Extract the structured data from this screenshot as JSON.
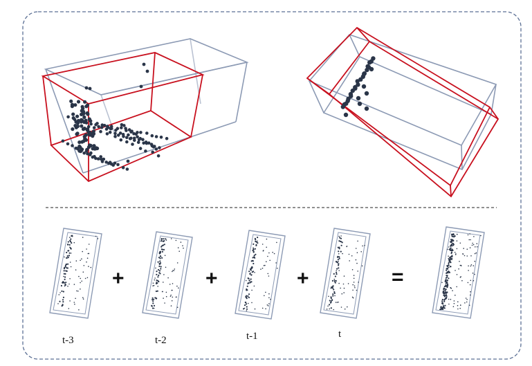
{
  "colors": {
    "predicted_box": "#c8101e",
    "reference_box": "#8c9ab4",
    "points": "#2a3548",
    "border": "#5b6f94",
    "divider": "#222222"
  },
  "top_panel": {
    "left_view": {
      "description_icon": "3d-box-pair-side-view"
    },
    "right_view": {
      "description_icon": "3d-box-pair-top-view"
    }
  },
  "sequence": {
    "frames": [
      {
        "label": "t-3"
      },
      {
        "label": "t-2"
      },
      {
        "label": "t-1"
      },
      {
        "label": "t"
      }
    ],
    "operators": [
      "+",
      "+",
      "+",
      "="
    ],
    "result": {
      "label": ""
    }
  }
}
